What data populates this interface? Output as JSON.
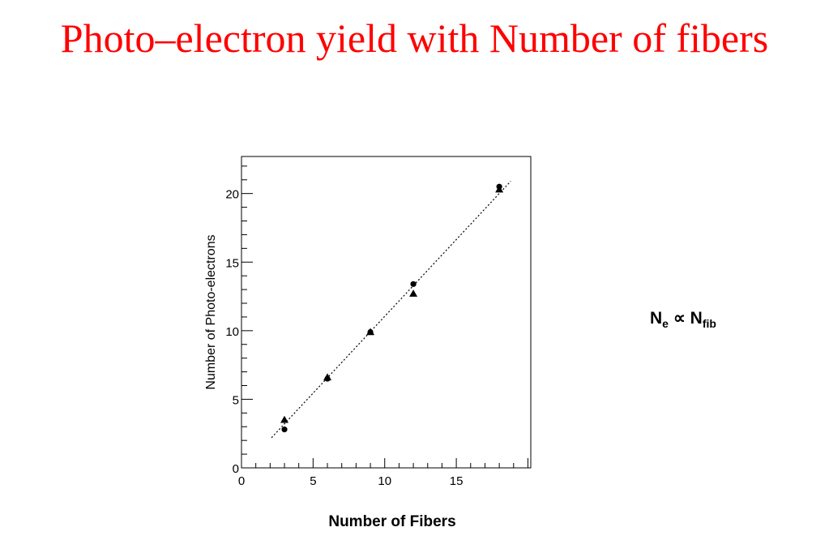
{
  "title": "Photo–electron yield with Number of fibers",
  "formula": {
    "left_main": "N",
    "left_sub": "e",
    "operator": "∝",
    "right_main": "N",
    "right_sub": "fib"
  },
  "chart_data": {
    "type": "scatter",
    "xlabel": "Number of Fibers",
    "ylabel": "Number of Photo-electrons",
    "xlim": [
      0,
      20.2
    ],
    "ylim": [
      0,
      22.7
    ],
    "xticks": [
      0,
      5,
      10,
      15
    ],
    "yticks": [
      0,
      5,
      10,
      15,
      20
    ],
    "grid": false,
    "series": [
      {
        "marker": "circle",
        "x": [
          3,
          6,
          9,
          12,
          18
        ],
        "y": [
          2.8,
          6.5,
          9.9,
          13.4,
          20.5
        ]
      },
      {
        "marker": "triangle",
        "x": [
          3,
          6,
          9,
          12,
          18
        ],
        "y": [
          3.5,
          6.6,
          9.9,
          12.7,
          20.3
        ]
      }
    ],
    "fit_line": {
      "style": "dotted",
      "x": [
        2.1,
        18.8
      ],
      "y": [
        2.2,
        20.9
      ]
    }
  }
}
